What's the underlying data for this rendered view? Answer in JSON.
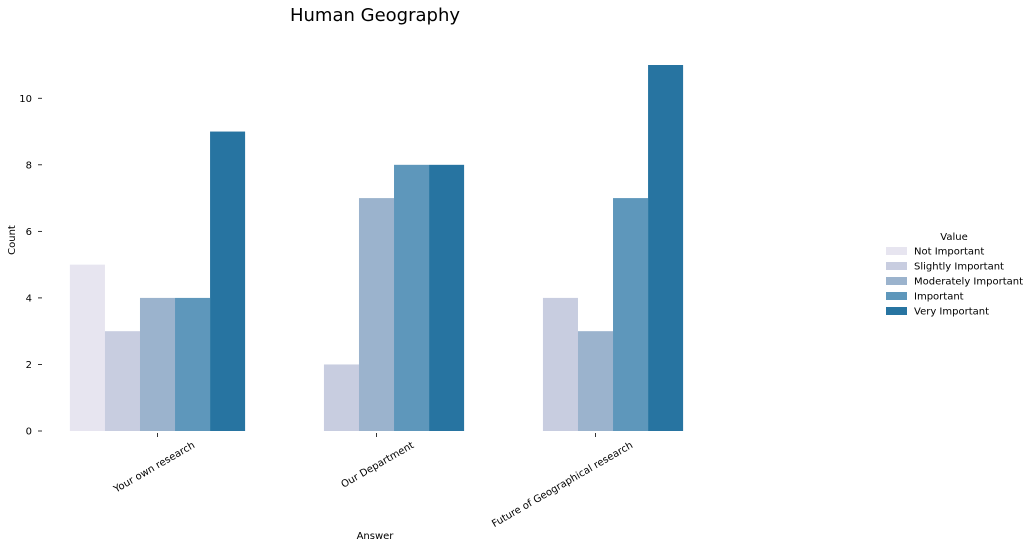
{
  "chart_data": {
    "type": "bar",
    "title": "Human Geography",
    "xlabel": "Answer",
    "ylabel": "Count",
    "categories": [
      "Your own research",
      "Our Department",
      "Future of Geographical research"
    ],
    "series": [
      {
        "name": "Not Important",
        "color": "#e7e5f0",
        "values": [
          5,
          0,
          0
        ]
      },
      {
        "name": "Slightly Important",
        "color": "#c8cde0",
        "values": [
          3,
          2,
          4
        ]
      },
      {
        "name": "Moderately Important",
        "color": "#9bb3cd",
        "values": [
          4,
          7,
          3
        ]
      },
      {
        "name": "Important",
        "color": "#5e97bb",
        "values": [
          4,
          8,
          7
        ]
      },
      {
        "name": "Very Important",
        "color": "#2774a1",
        "values": [
          9,
          8,
          11
        ]
      }
    ],
    "ylim": [
      0,
      11
    ],
    "yticks": [
      0,
      2,
      4,
      6,
      8,
      10
    ],
    "legend": {
      "title": "Value",
      "placement": "right"
    },
    "grid": false
  }
}
